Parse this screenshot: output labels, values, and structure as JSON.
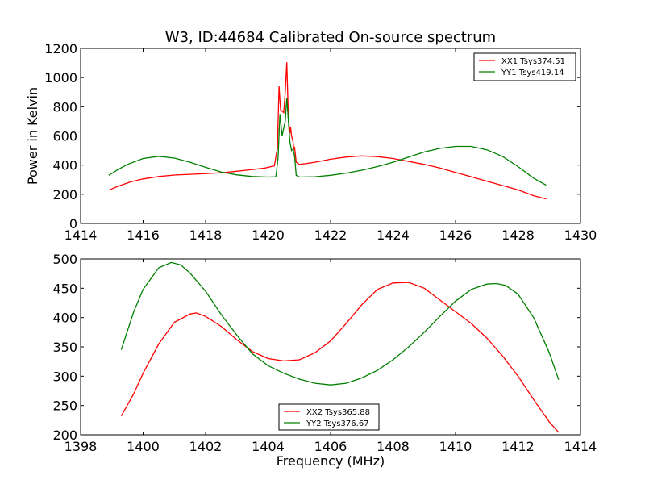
{
  "chart_data": [
    {
      "type": "line",
      "title": "W3, ID:44684 Calibrated On-source spectrum",
      "xlabel": "",
      "ylabel": "Power in Kelvin",
      "xlim": [
        1414,
        1430
      ],
      "ylim": [
        0,
        1200
      ],
      "xticks": [
        1414,
        1416,
        1418,
        1420,
        1422,
        1424,
        1426,
        1428,
        1430
      ],
      "yticks": [
        0,
        200,
        400,
        600,
        800,
        1000,
        1200
      ],
      "grid": false,
      "legend_position": "top-right",
      "series": [
        {
          "name": "XX1 Tsys374.51",
          "color": "#ff0000",
          "x": [
            1414.9,
            1415.2,
            1415.6,
            1416.0,
            1416.5,
            1417.0,
            1417.5,
            1418.0,
            1418.5,
            1419.0,
            1419.5,
            1419.9,
            1420.2,
            1420.3,
            1420.35,
            1420.4,
            1420.5,
            1420.55,
            1420.6,
            1420.65,
            1420.7,
            1420.72,
            1420.75,
            1420.8,
            1420.82,
            1420.85,
            1420.9,
            1421.0,
            1421.2,
            1421.5,
            1422.0,
            1422.5,
            1423.0,
            1423.5,
            1424.0,
            1424.5,
            1425.0,
            1425.5,
            1426.0,
            1426.5,
            1427.0,
            1427.5,
            1428.0,
            1428.5,
            1428.9
          ],
          "y": [
            228,
            255,
            285,
            305,
            322,
            332,
            337,
            342,
            348,
            358,
            370,
            380,
            395,
            520,
            940,
            780,
            760,
            900,
            1105,
            720,
            620,
            660,
            600,
            560,
            510,
            520,
            420,
            405,
            410,
            420,
            440,
            455,
            463,
            458,
            445,
            425,
            405,
            380,
            350,
            320,
            290,
            260,
            230,
            190,
            168
          ]
        },
        {
          "name": "YY1 Tsys419.14",
          "color": "#008000",
          "x": [
            1414.9,
            1415.2,
            1415.5,
            1416.0,
            1416.5,
            1417.0,
            1417.5,
            1418.0,
            1418.5,
            1419.0,
            1419.5,
            1420.0,
            1420.25,
            1420.32,
            1420.38,
            1420.45,
            1420.55,
            1420.6,
            1420.65,
            1420.7,
            1420.75,
            1420.8,
            1420.85,
            1420.9,
            1421.0,
            1421.5,
            1422.0,
            1422.5,
            1423.0,
            1423.5,
            1424.0,
            1424.5,
            1425.0,
            1425.5,
            1426.0,
            1426.5,
            1427.0,
            1427.5,
            1428.0,
            1428.5,
            1428.9
          ],
          "y": [
            330,
            370,
            405,
            445,
            460,
            448,
            420,
            385,
            352,
            333,
            322,
            318,
            320,
            450,
            750,
            600,
            700,
            860,
            700,
            560,
            500,
            510,
            460,
            330,
            318,
            320,
            330,
            345,
            365,
            390,
            420,
            455,
            490,
            515,
            528,
            528,
            505,
            460,
            390,
            310,
            262
          ]
        }
      ]
    },
    {
      "type": "line",
      "title": "",
      "xlabel": "Frequency (MHz)",
      "ylabel": "",
      "xlim": [
        1398,
        1414
      ],
      "ylim": [
        200,
        500
      ],
      "xticks": [
        1398,
        1400,
        1402,
        1404,
        1406,
        1408,
        1410,
        1412,
        1414
      ],
      "yticks": [
        200,
        250,
        300,
        350,
        400,
        450,
        500
      ],
      "grid": false,
      "legend_position": "bottom-center",
      "series": [
        {
          "name": "XX2 Tsys365.88",
          "color": "#ff0000",
          "x": [
            1399.3,
            1399.7,
            1400.0,
            1400.5,
            1401.0,
            1401.5,
            1401.7,
            1402.0,
            1402.5,
            1403.0,
            1403.5,
            1404.0,
            1404.5,
            1405.0,
            1405.5,
            1406.0,
            1406.5,
            1407.0,
            1407.5,
            1408.0,
            1408.5,
            1409.0,
            1409.5,
            1410.0,
            1410.5,
            1411.0,
            1411.5,
            1412.0,
            1412.5,
            1413.0,
            1413.3
          ],
          "y": [
            232,
            270,
            305,
            355,
            392,
            406,
            408,
            402,
            385,
            362,
            342,
            330,
            326,
            328,
            340,
            360,
            390,
            422,
            448,
            459,
            460,
            450,
            430,
            410,
            390,
            365,
            335,
            300,
            260,
            222,
            204
          ]
        },
        {
          "name": "YY2 Tsys376.67",
          "color": "#008000",
          "x": [
            1399.3,
            1399.7,
            1400.0,
            1400.5,
            1400.9,
            1401.2,
            1401.5,
            1402.0,
            1402.5,
            1403.0,
            1403.5,
            1404.0,
            1404.5,
            1405.0,
            1405.5,
            1406.0,
            1406.5,
            1407.0,
            1407.5,
            1408.0,
            1408.5,
            1409.0,
            1409.5,
            1410.0,
            1410.5,
            1411.0,
            1411.3,
            1411.6,
            1412.0,
            1412.5,
            1413.0,
            1413.3
          ],
          "y": [
            345,
            410,
            448,
            485,
            494,
            490,
            476,
            445,
            405,
            370,
            338,
            318,
            305,
            295,
            288,
            285,
            288,
            297,
            310,
            328,
            350,
            375,
            402,
            428,
            448,
            457,
            458,
            455,
            440,
            400,
            340,
            294
          ]
        }
      ]
    }
  ]
}
